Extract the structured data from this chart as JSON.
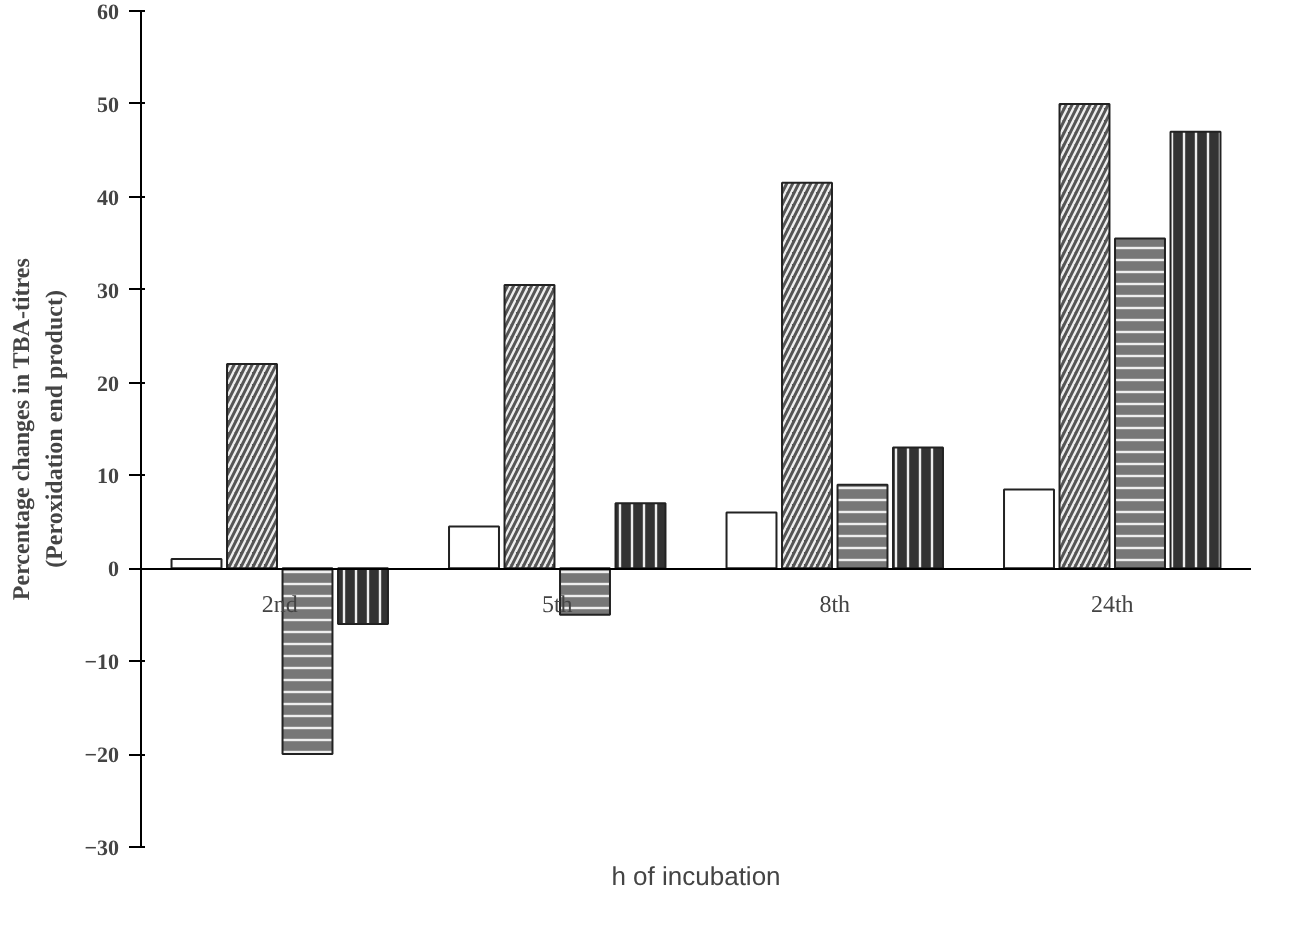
{
  "chart_data": {
    "type": "bar",
    "xlabel": "h of incubation",
    "ylabel": "Percentage changes in TBA-titres\n(Peroxidation end product)",
    "categories": [
      "2nd",
      "5th",
      "8th",
      "24th"
    ],
    "series": [
      {
        "color": "#ffffff",
        "values": [
          1,
          4.5,
          6,
          8.5
        ]
      },
      {
        "color": "#555555",
        "values": [
          22,
          30.5,
          41.5,
          50
        ]
      },
      {
        "color": "#777777",
        "values": [
          -20,
          -5,
          9,
          35.5
        ]
      },
      {
        "color": "#333333",
        "values": [
          -6,
          7,
          13,
          47
        ]
      }
    ],
    "ylim": [
      -30,
      60
    ],
    "yticks": [
      -30,
      -20,
      -10,
      0,
      10,
      20,
      30,
      40,
      50,
      60
    ],
    "grid": false
  }
}
